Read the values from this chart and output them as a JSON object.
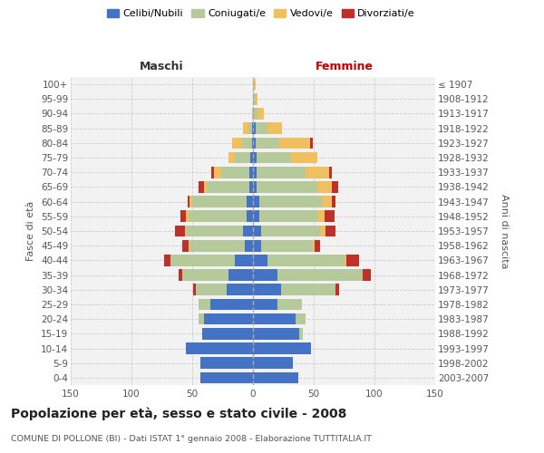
{
  "age_groups": [
    "0-4",
    "5-9",
    "10-14",
    "15-19",
    "20-24",
    "25-29",
    "30-34",
    "35-39",
    "40-44",
    "45-49",
    "50-54",
    "55-59",
    "60-64",
    "65-69",
    "70-74",
    "75-79",
    "80-84",
    "85-89",
    "90-94",
    "95-99",
    "100+"
  ],
  "birth_years": [
    "2003-2007",
    "1998-2002",
    "1993-1997",
    "1988-1992",
    "1983-1987",
    "1978-1982",
    "1973-1977",
    "1968-1972",
    "1963-1967",
    "1958-1962",
    "1953-1957",
    "1948-1952",
    "1943-1947",
    "1938-1942",
    "1933-1937",
    "1928-1932",
    "1923-1927",
    "1918-1922",
    "1913-1917",
    "1908-1912",
    "≤ 1907"
  ],
  "colors": {
    "celibi": "#4472c4",
    "coniugati": "#b5c99a",
    "vedovi": "#f0c060",
    "divorziati": "#c0302a"
  },
  "maschi": {
    "celibi": [
      43,
      43,
      55,
      42,
      40,
      35,
      22,
      20,
      15,
      7,
      8,
      5,
      5,
      3,
      3,
      2,
      1,
      1,
      0,
      0,
      0
    ],
    "coniugati": [
      0,
      0,
      0,
      0,
      5,
      10,
      25,
      38,
      53,
      45,
      47,
      48,
      45,
      35,
      23,
      13,
      8,
      3,
      0,
      0,
      0
    ],
    "vedovi": [
      0,
      0,
      0,
      0,
      0,
      0,
      0,
      0,
      0,
      1,
      1,
      2,
      2,
      2,
      6,
      5,
      8,
      4,
      1,
      0,
      0
    ],
    "divorziati": [
      0,
      0,
      0,
      0,
      0,
      0,
      2,
      3,
      5,
      5,
      8,
      5,
      2,
      5,
      2,
      0,
      0,
      0,
      0,
      0,
      0
    ]
  },
  "femmine": {
    "celibi": [
      37,
      33,
      48,
      38,
      35,
      20,
      23,
      20,
      12,
      7,
      7,
      5,
      5,
      3,
      3,
      3,
      2,
      2,
      0,
      0,
      0
    ],
    "coniugati": [
      0,
      0,
      0,
      3,
      8,
      20,
      45,
      70,
      63,
      42,
      48,
      48,
      52,
      50,
      40,
      28,
      20,
      10,
      4,
      2,
      1
    ],
    "vedovi": [
      0,
      0,
      0,
      0,
      0,
      0,
      0,
      0,
      2,
      2,
      5,
      6,
      8,
      12,
      20,
      22,
      25,
      12,
      5,
      2,
      1
    ],
    "divorziati": [
      0,
      0,
      0,
      0,
      0,
      0,
      3,
      7,
      10,
      4,
      8,
      8,
      3,
      5,
      2,
      0,
      2,
      0,
      0,
      0,
      0
    ]
  },
  "title": "Popolazione per età, sesso e stato civile - 2008",
  "subtitle": "COMUNE DI POLLONE (BI) - Dati ISTAT 1° gennaio 2008 - Elaborazione TUTTITALIA.IT",
  "header_maschi": "Maschi",
  "header_femmine": "Femmine",
  "ylabel_left": "Fasce di età",
  "ylabel_right": "Anni di nascita",
  "xlim": 150,
  "bg_color": "#f2f2f2",
  "grid_color": "#cccccc",
  "legend_labels": [
    "Celibi/Nubili",
    "Coniugati/e",
    "Vedovi/e",
    "Divorziati/e"
  ]
}
